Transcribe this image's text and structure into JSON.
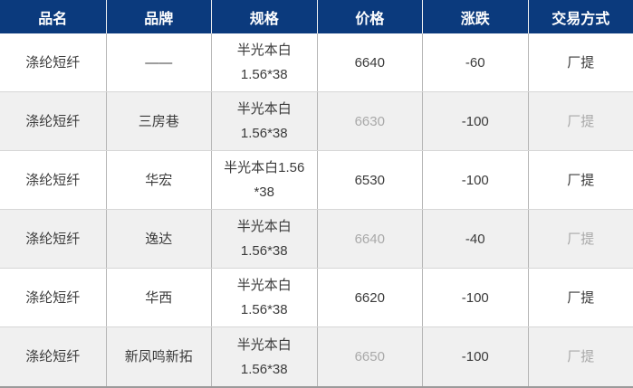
{
  "colors": {
    "header_bg": "#0b3a7d",
    "header_text": "#ffffff",
    "row_bg": "#ffffff",
    "row_alt_bg": "#f0f0f0",
    "grid_line": "#b5b5b5",
    "row_divider": "#d6d6d6",
    "bottom_border": "#9b9b9b",
    "text_dark": "#3b3b3b",
    "text_muted": "#a9a9a9"
  },
  "table": {
    "columns": [
      {
        "label": "品名"
      },
      {
        "label": "品牌"
      },
      {
        "label": "规格"
      },
      {
        "label": "价格"
      },
      {
        "label": "涨跌"
      },
      {
        "label": "交易方式"
      }
    ],
    "rows": [
      {
        "name": "涤纶短纤",
        "brand": "——",
        "spec": "半光本白\n1.56*38",
        "price": "6640",
        "change": "-60",
        "trade": "厂提"
      },
      {
        "name": "涤纶短纤",
        "brand": "三房巷",
        "spec": "半光本白\n1.56*38",
        "price": "6630",
        "change": "-100",
        "trade": "厂提"
      },
      {
        "name": "涤纶短纤",
        "brand": "华宏",
        "spec": "半光本白1.56\n*38",
        "price": "6530",
        "change": "-100",
        "trade": "厂提"
      },
      {
        "name": "涤纶短纤",
        "brand": "逸达",
        "spec": "半光本白\n1.56*38",
        "price": "6640",
        "change": "-40",
        "trade": "厂提"
      },
      {
        "name": "涤纶短纤",
        "brand": "华西",
        "spec": "半光本白\n1.56*38",
        "price": "6620",
        "change": "-100",
        "trade": "厂提"
      },
      {
        "name": "涤纶短纤",
        "brand": "新凤鸣新拓",
        "spec": "半光本白\n1.56*38",
        "price": "6650",
        "change": "-100",
        "trade": "厂提"
      }
    ]
  }
}
